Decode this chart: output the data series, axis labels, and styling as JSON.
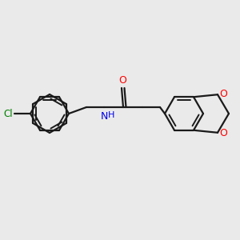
{
  "background_color": "#eaeaea",
  "bond_color": "#1a1a1a",
  "atom_colors": {
    "O": "#ff0000",
    "N": "#0000ee",
    "Cl": "#008000",
    "C": "#1a1a1a"
  },
  "figsize": [
    3.0,
    3.0
  ],
  "dpi": 100,
  "lw": 1.6,
  "inner_lw": 1.4,
  "hex_r": 24,
  "inner_shrink": 4.0,
  "inner_off": 4.0
}
